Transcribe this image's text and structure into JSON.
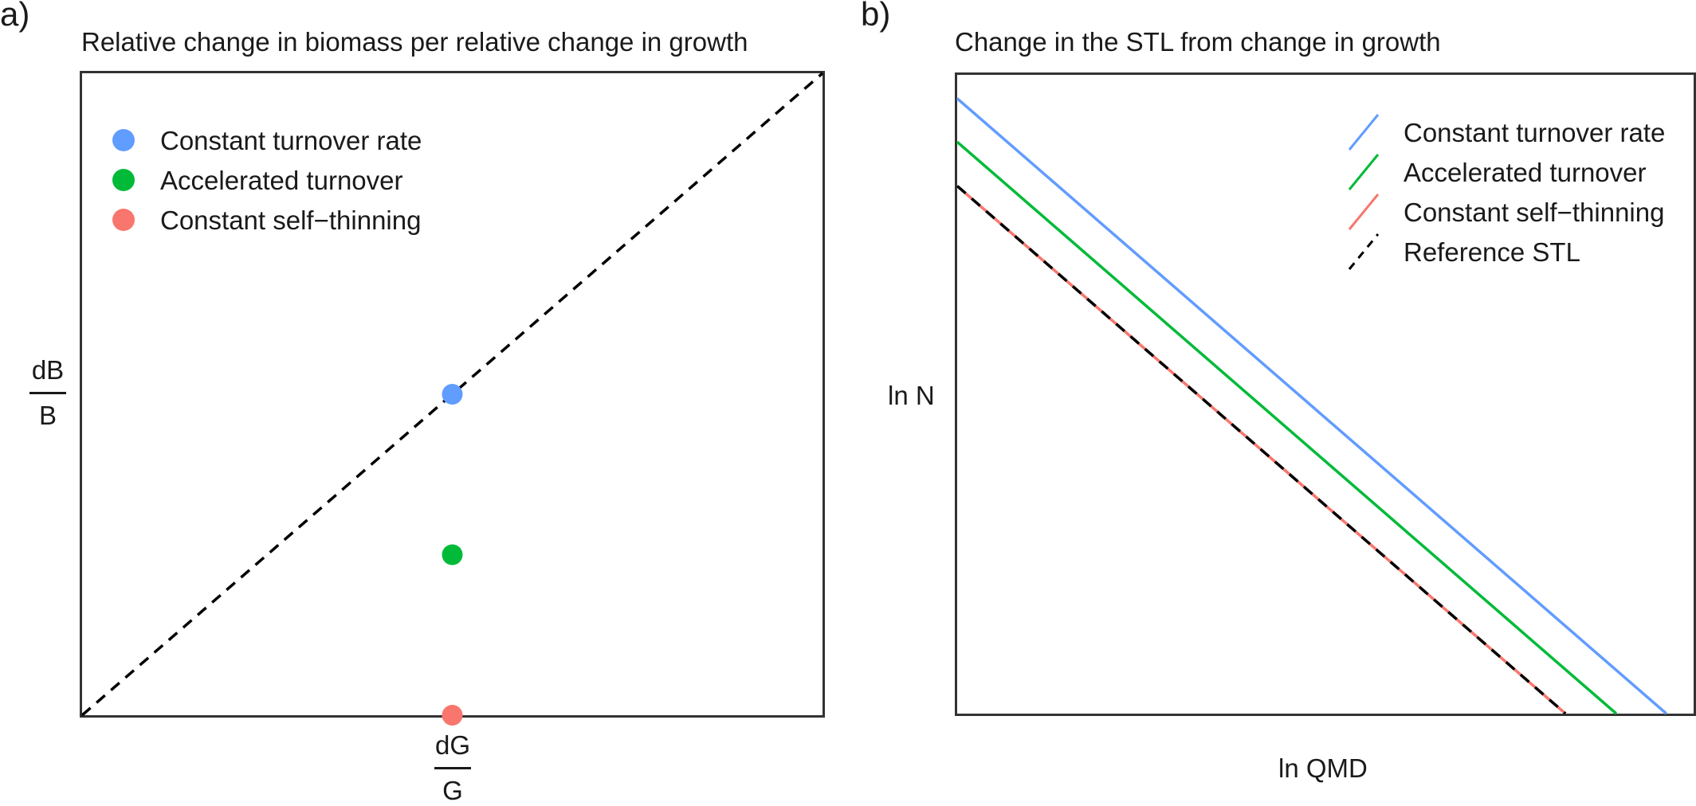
{
  "panel_a": {
    "tag": "a)",
    "title": "Relative change in biomass per relative change in growth",
    "ylabel": {
      "numerator": "dB",
      "denominator": "B"
    },
    "xlabel": {
      "numerator": "dG",
      "denominator": "G"
    },
    "legend": [
      {
        "label": "Constant turnover rate",
        "color": "#619CFF"
      },
      {
        "label": "Accelerated turnover",
        "color": "#00BA38"
      },
      {
        "label": "Constant self−thinning",
        "color": "#F8766D"
      }
    ]
  },
  "panel_b": {
    "tag": "b)",
    "title": "Change in the STL from change in growth",
    "ylabel": "ln N",
    "xlabel": "ln QMD",
    "legend": [
      {
        "label": "Constant turnover rate",
        "color": "#619CFF",
        "style": "solid"
      },
      {
        "label": "Accelerated turnover",
        "color": "#00BA38",
        "style": "solid"
      },
      {
        "label": "Constant self−thinning",
        "color": "#F8766D",
        "style": "solid"
      },
      {
        "label": "Reference STL",
        "color": "#000000",
        "style": "dashed"
      }
    ]
  },
  "chart_data": [
    {
      "type": "scatter",
      "title": "Relative change in biomass per relative change in growth",
      "xlabel": "dG/G",
      "ylabel": "dB/B",
      "xlim": [
        0,
        1
      ],
      "ylim": [
        0,
        1
      ],
      "grid": false,
      "legend_position": "top-left",
      "reference_line": {
        "style": "dashed",
        "color": "#000000",
        "x": [
          0,
          1
        ],
        "y": [
          0,
          1
        ]
      },
      "series": [
        {
          "name": "Constant turnover rate",
          "color": "#619CFF",
          "x": [
            0.5
          ],
          "y": [
            0.5
          ]
        },
        {
          "name": "Accelerated turnover",
          "color": "#00BA38",
          "x": [
            0.5
          ],
          "y": [
            0.25
          ]
        },
        {
          "name": "Constant self−thinning",
          "color": "#F8766D",
          "x": [
            0.5
          ],
          "y": [
            0.0
          ]
        }
      ]
    },
    {
      "type": "line",
      "title": "Change in the STL from change in growth",
      "xlabel": "ln QMD",
      "ylabel": "ln N",
      "xlim": [
        0,
        1
      ],
      "ylim": [
        0,
        1
      ],
      "grid": false,
      "legend_position": "top-right",
      "series": [
        {
          "name": "Constant turnover rate",
          "color": "#619CFF",
          "style": "solid",
          "x": [
            0,
            0.963
          ],
          "y": [
            0.963,
            0
          ]
        },
        {
          "name": "Accelerated turnover",
          "color": "#00BA38",
          "style": "solid",
          "x": [
            0,
            0.895
          ],
          "y": [
            0.895,
            0
          ]
        },
        {
          "name": "Constant self−thinning",
          "color": "#F8766D",
          "style": "solid",
          "x": [
            0,
            0.826
          ],
          "y": [
            0.826,
            0
          ]
        },
        {
          "name": "Reference STL",
          "color": "#000000",
          "style": "dashed",
          "x": [
            0,
            0.826
          ],
          "y": [
            0.826,
            0
          ]
        }
      ]
    }
  ]
}
